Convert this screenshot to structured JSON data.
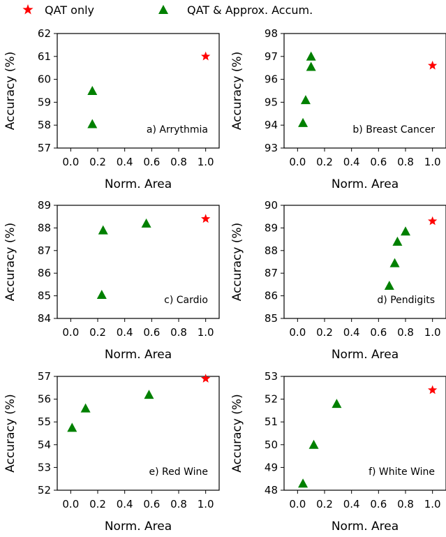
{
  "legend": {
    "star_label": "QAT only",
    "tri_label": "QAT & Approx. Accum."
  },
  "colors": {
    "star": "#ff0000",
    "triangle": "#008000"
  },
  "chart_data": [
    {
      "type": "scatter",
      "annotation": "a) Arrythmia",
      "xlabel": "Norm. Area",
      "ylabel": "Accuracy (%)",
      "xlim": [
        -0.1,
        1.1
      ],
      "ylim": [
        57,
        62
      ],
      "xticks": [
        "0.0",
        "0.2",
        "0.4",
        "0.6",
        "0.8",
        "1.0"
      ],
      "yticks": [
        "57",
        "58",
        "59",
        "60",
        "61",
        "62"
      ],
      "series": [
        {
          "marker": "triangle",
          "x": [
            0.16,
            0.16
          ],
          "y": [
            59.5,
            58.05
          ]
        },
        {
          "marker": "star",
          "x": [
            1.0
          ],
          "y": [
            61.0
          ]
        }
      ]
    },
    {
      "type": "scatter",
      "annotation": "b) Breast Cancer",
      "xlabel": "Norm. Area",
      "ylabel": "Accuracy (%)",
      "xlim": [
        -0.1,
        1.1
      ],
      "ylim": [
        93,
        98
      ],
      "xticks": [
        "0.0",
        "0.2",
        "0.4",
        "0.6",
        "0.8",
        "1.0"
      ],
      "yticks": [
        "93",
        "94",
        "95",
        "96",
        "97",
        "98"
      ],
      "series": [
        {
          "marker": "triangle",
          "x": [
            0.1,
            0.1,
            0.06,
            0.04
          ],
          "y": [
            97.0,
            96.55,
            95.1,
            94.1
          ]
        },
        {
          "marker": "star",
          "x": [
            1.0
          ],
          "y": [
            96.6
          ]
        }
      ]
    },
    {
      "type": "scatter",
      "annotation": "c) Cardio",
      "xlabel": "Norm. Area",
      "ylabel": "Accuracy (%)",
      "xlim": [
        -0.1,
        1.1
      ],
      "ylim": [
        84,
        89
      ],
      "xticks": [
        "0.0",
        "0.2",
        "0.4",
        "0.6",
        "0.8",
        "1.0"
      ],
      "yticks": [
        "84",
        "85",
        "86",
        "87",
        "88",
        "89"
      ],
      "series": [
        {
          "marker": "triangle",
          "x": [
            0.24,
            0.56,
            0.23
          ],
          "y": [
            87.9,
            88.2,
            85.05
          ]
        },
        {
          "marker": "star",
          "x": [
            1.0
          ],
          "y": [
            88.4
          ]
        }
      ]
    },
    {
      "type": "scatter",
      "annotation": "d) Pendigits",
      "xlabel": "Norm. Area",
      "ylabel": "Accuracy (%)",
      "xlim": [
        -0.1,
        1.1
      ],
      "ylim": [
        85,
        90
      ],
      "xticks": [
        "0.0",
        "0.2",
        "0.4",
        "0.6",
        "0.8",
        "1.0"
      ],
      "yticks": [
        "85",
        "86",
        "87",
        "88",
        "89",
        "90"
      ],
      "series": [
        {
          "marker": "triangle",
          "x": [
            0.8,
            0.74,
            0.72,
            0.68
          ],
          "y": [
            88.85,
            88.4,
            87.45,
            86.45
          ]
        },
        {
          "marker": "star",
          "x": [
            1.0
          ],
          "y": [
            89.3
          ]
        }
      ]
    },
    {
      "type": "scatter",
      "annotation": "e) Red Wine",
      "xlabel": "Norm. Area",
      "ylabel": "Accuracy (%)",
      "xlim": [
        -0.1,
        1.1
      ],
      "ylim": [
        52,
        57
      ],
      "xticks": [
        "0.0",
        "0.2",
        "0.4",
        "0.6",
        "0.8",
        "1.0"
      ],
      "yticks": [
        "52",
        "53",
        "54",
        "55",
        "56",
        "57"
      ],
      "series": [
        {
          "marker": "triangle",
          "x": [
            0.58,
            0.11,
            0.01
          ],
          "y": [
            56.2,
            55.6,
            54.75
          ]
        },
        {
          "marker": "star",
          "x": [
            1.0
          ],
          "y": [
            56.9
          ]
        }
      ]
    },
    {
      "type": "scatter",
      "annotation": "f) White Wine",
      "xlabel": "Norm. Area",
      "ylabel": "Accuracy (%)",
      "xlim": [
        -0.1,
        1.1
      ],
      "ylim": [
        48,
        53
      ],
      "xticks": [
        "0.0",
        "0.2",
        "0.4",
        "0.6",
        "0.8",
        "1.0"
      ],
      "yticks": [
        "48",
        "49",
        "50",
        "51",
        "52",
        "53"
      ],
      "series": [
        {
          "marker": "triangle",
          "x": [
            0.29,
            0.12,
            0.04
          ],
          "y": [
            51.8,
            50.0,
            48.3
          ]
        },
        {
          "marker": "star",
          "x": [
            1.0
          ],
          "y": [
            52.4
          ]
        }
      ]
    }
  ]
}
